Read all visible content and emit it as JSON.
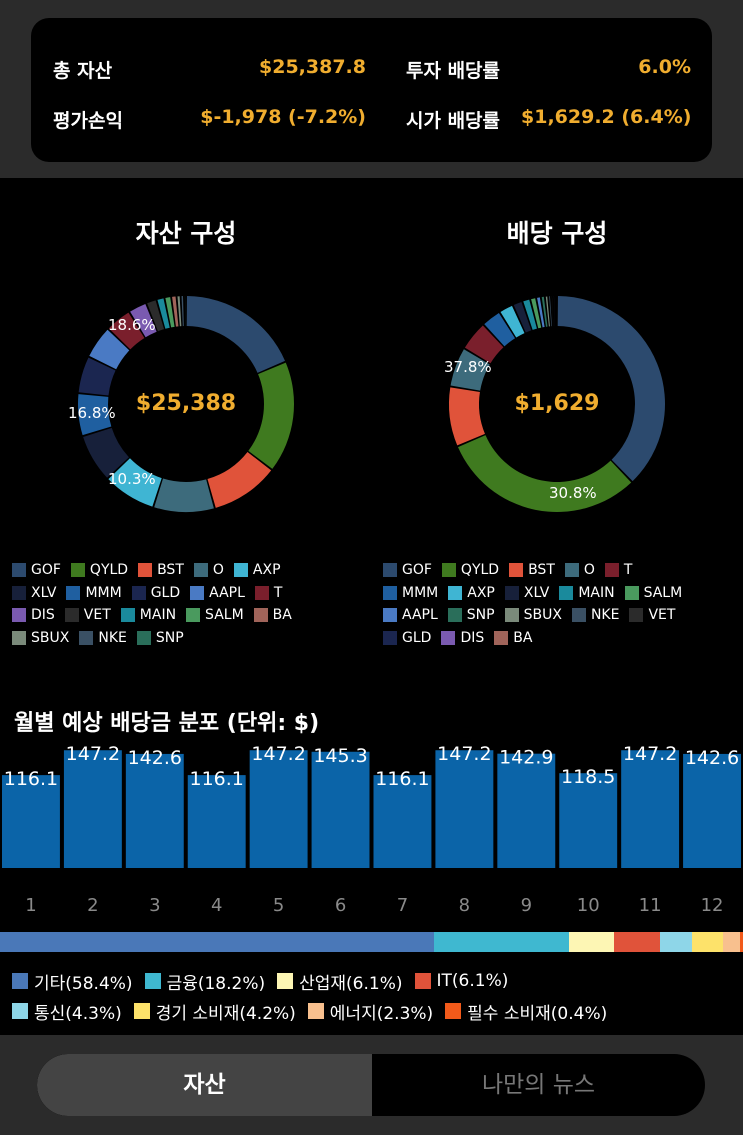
{
  "summary": {
    "total_assets_label": "총 자산",
    "total_assets_value": "$25,387.8",
    "invest_yield_label": "투자 배당률",
    "invest_yield_value": "6.0%",
    "pnl_label": "평가손익",
    "pnl_value": "$-1,978 (-7.2%)",
    "market_yield_label": "시가 배당률",
    "market_yield_value": "$1,629.2 (6.4%)"
  },
  "asset_chart": {
    "title": "자산 구성",
    "center": "$25,388",
    "labels": [
      "18.6%",
      "16.8%",
      "10.3%"
    ],
    "slices": [
      {
        "name": "GOF",
        "value": 18.6,
        "color": "#2c4a6e"
      },
      {
        "name": "QYLD",
        "value": 16.8,
        "color": "#3f7a1f"
      },
      {
        "name": "BST",
        "value": 10.3,
        "color": "#e0533a"
      },
      {
        "name": "O",
        "value": 9.2,
        "color": "#3d6b7c"
      },
      {
        "name": "AXP",
        "value": 8.0,
        "color": "#3fb5d3"
      },
      {
        "name": "XLV",
        "value": 7.3,
        "color": "#17203a"
      },
      {
        "name": "MMM",
        "value": 6.4,
        "color": "#1f5fa0"
      },
      {
        "name": "GLD",
        "value": 5.6,
        "color": "#1b2650"
      },
      {
        "name": "AAPL",
        "value": 5.0,
        "color": "#4a7ac4"
      },
      {
        "name": "T",
        "value": 4.0,
        "color": "#7a1f2c"
      },
      {
        "name": "DIS",
        "value": 2.8,
        "color": "#7a5ab0"
      },
      {
        "name": "VET",
        "value": 1.6,
        "color": "#2b2b2b"
      },
      {
        "name": "MAIN",
        "value": 1.2,
        "color": "#1a8a9c"
      },
      {
        "name": "SALM",
        "value": 1.0,
        "color": "#4a9a5e"
      },
      {
        "name": "BA",
        "value": 0.8,
        "color": "#a0645a"
      },
      {
        "name": "SBUX",
        "value": 0.6,
        "color": "#7a8a7a"
      },
      {
        "name": "NKE",
        "value": 0.5,
        "color": "#3a5064"
      },
      {
        "name": "SNP",
        "value": 0.3,
        "color": "#2a6e5a"
      }
    ]
  },
  "dividend_chart": {
    "title": "배당 구성",
    "center": "$1,629",
    "labels": [
      "37.8%",
      "30.8%"
    ],
    "slices": [
      {
        "name": "GOF",
        "value": 37.8,
        "color": "#2c4a6e"
      },
      {
        "name": "QYLD",
        "value": 30.8,
        "color": "#3f7a1f"
      },
      {
        "name": "BST",
        "value": 9.0,
        "color": "#e0533a"
      },
      {
        "name": "O",
        "value": 6.0,
        "color": "#3d6b7c"
      },
      {
        "name": "T",
        "value": 4.5,
        "color": "#7a1f2c"
      },
      {
        "name": "MMM",
        "value": 3.0,
        "color": "#1f5fa0"
      },
      {
        "name": "AXP",
        "value": 2.2,
        "color": "#3fb5d3"
      },
      {
        "name": "XLV",
        "value": 1.5,
        "color": "#17203a"
      },
      {
        "name": "MAIN",
        "value": 1.2,
        "color": "#1a8a9c"
      },
      {
        "name": "SALM",
        "value": 0.9,
        "color": "#4a9a5e"
      },
      {
        "name": "AAPL",
        "value": 0.7,
        "color": "#4a7ac4"
      },
      {
        "name": "SNP",
        "value": 0.6,
        "color": "#2a6e5a"
      },
      {
        "name": "SBUX",
        "value": 0.5,
        "color": "#7a8a7a"
      },
      {
        "name": "NKE",
        "value": 0.4,
        "color": "#3a5064"
      },
      {
        "name": "VET",
        "value": 0.3,
        "color": "#2b2b2b"
      },
      {
        "name": "GLD",
        "value": 0.3,
        "color": "#1b2650"
      },
      {
        "name": "DIS",
        "value": 0.2,
        "color": "#7a5ab0"
      },
      {
        "name": "BA",
        "value": 0.1,
        "color": "#a0645a"
      }
    ]
  },
  "asset_legend_rows": [
    [
      "GOF",
      "QYLD",
      "BST",
      "O",
      "AXP"
    ],
    [
      "XLV",
      "MMM",
      "GLD",
      "AAPL",
      "T"
    ],
    [
      "DIS",
      "VET",
      "MAIN",
      "SALM",
      "BA"
    ],
    [
      "SBUX",
      "NKE",
      "SNP"
    ]
  ],
  "dividend_legend_rows": [
    [
      "GOF",
      "QYLD",
      "BST",
      "O",
      "T"
    ],
    [
      "MMM",
      "AXP",
      "XLV",
      "MAIN",
      "SALM"
    ],
    [
      "AAPL",
      "SNP",
      "SBUX",
      "NKE",
      "VET"
    ],
    [
      "GLD",
      "DIS",
      "BA"
    ]
  ],
  "ticker_colors": {
    "GOF": "#2c4a6e",
    "QYLD": "#3f7a1f",
    "BST": "#e0533a",
    "O": "#3d6b7c",
    "AXP": "#3fb5d3",
    "XLV": "#17203a",
    "MMM": "#1f5fa0",
    "GLD": "#1b2650",
    "AAPL": "#4a7ac4",
    "T": "#7a1f2c",
    "DIS": "#7a5ab0",
    "VET": "#2b2b2b",
    "MAIN": "#1a8a9c",
    "SALM": "#4a9a5e",
    "BA": "#a0645a",
    "SBUX": "#7a8a7a",
    "NKE": "#3a5064",
    "SNP": "#2a6e5a"
  },
  "monthly": {
    "title": "월별 예상 배당금 분포 (단위: $)",
    "bar_color": "#0b64a8"
  },
  "chart_data": {
    "type": "bar",
    "categories": [
      "1",
      "2",
      "3",
      "4",
      "5",
      "6",
      "7",
      "8",
      "9",
      "10",
      "11",
      "12"
    ],
    "values": [
      116.1,
      147.2,
      142.6,
      116.1,
      147.2,
      145.3,
      116.1,
      147.2,
      142.9,
      118.5,
      147.2,
      142.6
    ],
    "title": "월별 예상 배당금 분포 (단위: $)",
    "xlabel": "",
    "ylabel": "",
    "ylim": [
      0,
      160
    ]
  },
  "sectors": [
    {
      "label": "기타(58.4%)",
      "value": 58.4,
      "color": "#4a78b8"
    },
    {
      "label": "금융(18.2%)",
      "value": 18.2,
      "color": "#3fb8d0"
    },
    {
      "label": "산업재(6.1%)",
      "value": 6.1,
      "color": "#fdf6b4"
    },
    {
      "label": "IT(6.1%)",
      "value": 6.1,
      "color": "#e0533a"
    },
    {
      "label": "통신(4.3%)",
      "value": 4.3,
      "color": "#8ed6e8"
    },
    {
      "label": "경기 소비재(4.2%)",
      "value": 4.2,
      "color": "#fde26a"
    },
    {
      "label": "에너지(2.3%)",
      "value": 2.3,
      "color": "#f8c08e"
    },
    {
      "label": "필수 소비재(0.4%)",
      "value": 0.4,
      "color": "#f25a1a"
    }
  ],
  "tabs": {
    "active": "자산",
    "inactive": "나만의 뉴스"
  }
}
